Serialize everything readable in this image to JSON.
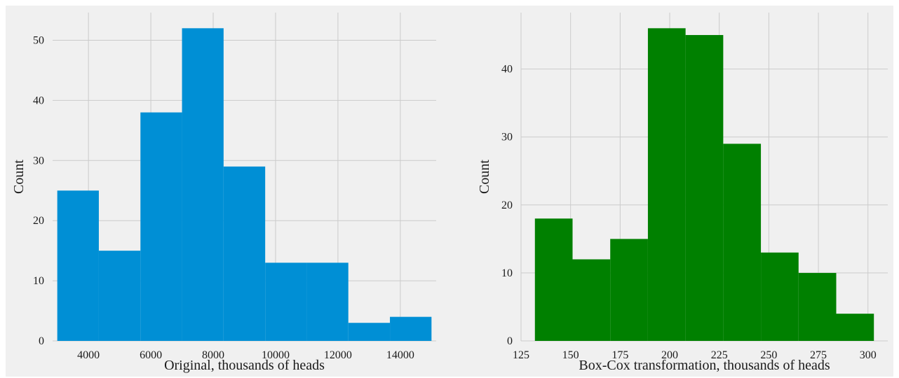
{
  "chart_data": [
    {
      "type": "bar",
      "bins": [
        {
          "x0": 3000,
          "x1": 4333,
          "count": 25
        },
        {
          "x0": 4333,
          "x1": 5667,
          "count": 15
        },
        {
          "x0": 5667,
          "x1": 7000,
          "count": 38
        },
        {
          "x0": 7000,
          "x1": 8333,
          "count": 52
        },
        {
          "x0": 8333,
          "x1": 9667,
          "count": 29
        },
        {
          "x0": 9667,
          "x1": 11000,
          "count": 13
        },
        {
          "x0": 11000,
          "x1": 12333,
          "count": 13
        },
        {
          "x0": 12333,
          "x1": 13667,
          "count": 3
        },
        {
          "x0": 13667,
          "x1": 15000,
          "count": 4
        }
      ],
      "xlim": [
        2850,
        15150
      ],
      "ylim": [
        0,
        54.6
      ],
      "xticks": [
        4000,
        6000,
        8000,
        10000,
        12000,
        14000
      ],
      "yticks": [
        0,
        10,
        20,
        30,
        40,
        50
      ],
      "xlabel": "Original, thousands of heads",
      "ylabel": "Count",
      "color": "#008fd5",
      "grid": true
    },
    {
      "type": "bar",
      "bins": [
        {
          "x0": 132,
          "x1": 151,
          "count": 18
        },
        {
          "x0": 151,
          "x1": 170,
          "count": 12
        },
        {
          "x0": 170,
          "x1": 189,
          "count": 15
        },
        {
          "x0": 189,
          "x1": 208,
          "count": 46
        },
        {
          "x0": 208,
          "x1": 227,
          "count": 45
        },
        {
          "x0": 227,
          "x1": 246,
          "count": 29
        },
        {
          "x0": 246,
          "x1": 265,
          "count": 13
        },
        {
          "x0": 265,
          "x1": 284,
          "count": 10
        },
        {
          "x0": 284,
          "x1": 303,
          "count": 4
        }
      ],
      "xlim": [
        125,
        310
      ],
      "ylim": [
        0,
        48.3
      ],
      "xticks": [
        125,
        150,
        175,
        200,
        225,
        250,
        275,
        300
      ],
      "yticks": [
        0,
        10,
        20,
        30,
        40
      ],
      "xlabel": "Box-Cox transformation, thousands of heads",
      "ylabel": "Count",
      "color": "#008000",
      "grid": true
    }
  ]
}
